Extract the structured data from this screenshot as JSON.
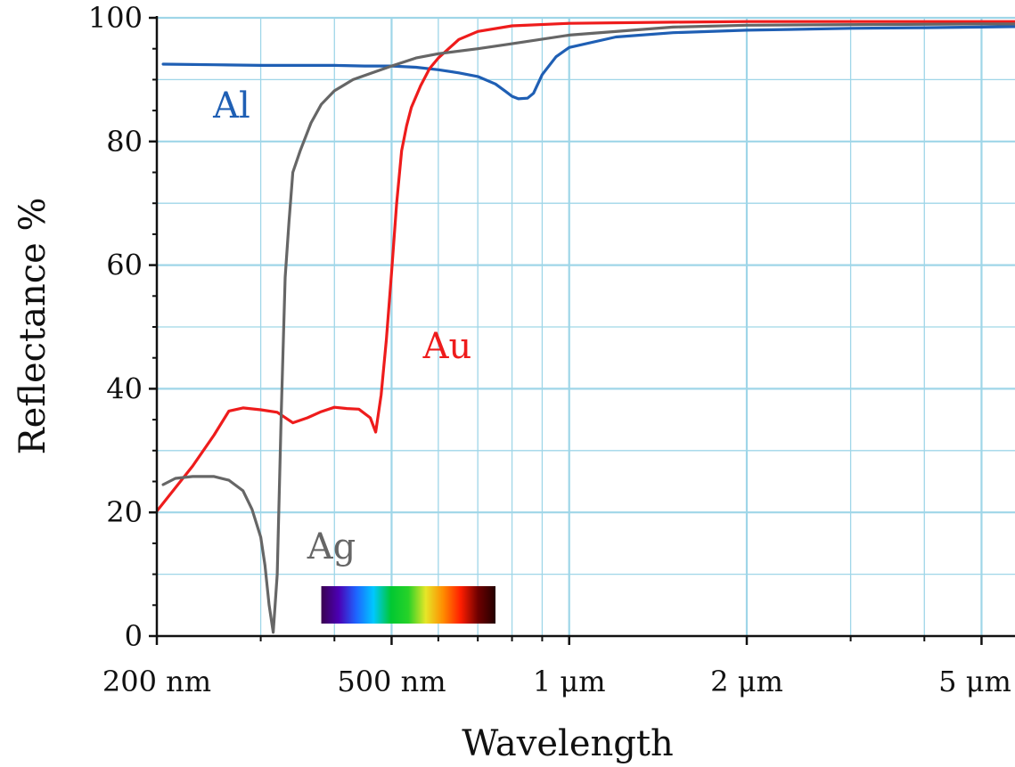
{
  "chart_data": {
    "type": "line",
    "xlabel": "Wavelength",
    "ylabel": "Reflectance %",
    "x_scale": "log",
    "x_unit": "nm",
    "xlim": [
      200,
      6000
    ],
    "ylim": [
      0,
      100
    ],
    "grid": true,
    "colors": {
      "grid": "#9fd6e8",
      "axis": "#111111",
      "Al": "#1f5fb4",
      "Au": "#ee1c1c",
      "Ag": "#666666"
    },
    "x_ticks": [
      {
        "value": 200,
        "label": "200 nm"
      },
      {
        "value": 500,
        "label": "500 nm"
      },
      {
        "value": 1000,
        "label": "1 μm"
      },
      {
        "value": 2000,
        "label": "2 μm"
      },
      {
        "value": 5000,
        "label": "5 μm"
      }
    ],
    "y_ticks": [
      {
        "value": 0,
        "label": "0"
      },
      {
        "value": 20,
        "label": "20"
      },
      {
        "value": 40,
        "label": "40"
      },
      {
        "value": 60,
        "label": "60"
      },
      {
        "value": 80,
        "label": "80"
      },
      {
        "value": 100,
        "label": "100"
      }
    ],
    "visible_spectrum_band": {
      "from": 380,
      "to": 750,
      "stops": [
        "#3a0050",
        "#4b00b4",
        "#1e64ff",
        "#00c8ff",
        "#00c832",
        "#28d228",
        "#e6e628",
        "#ff8c00",
        "#ff1e00",
        "#6e0000",
        "#230000"
      ]
    },
    "series": [
      {
        "name": "Al",
        "label_at": [
          260,
          118
        ],
        "x": [
          205,
          250,
          300,
          350,
          400,
          450,
          500,
          550,
          600,
          650,
          700,
          750,
          780,
          800,
          820,
          850,
          870,
          900,
          950,
          1000,
          1200,
          1500,
          2000,
          3000,
          4000,
          5000,
          6000
        ],
        "y": [
          92.5,
          92.4,
          92.3,
          92.3,
          92.3,
          92.2,
          92.2,
          92.0,
          91.6,
          91.1,
          90.5,
          89.3,
          88.1,
          87.3,
          86.9,
          87.0,
          87.8,
          90.8,
          93.7,
          95.2,
          96.9,
          97.6,
          98.0,
          98.3,
          98.4,
          98.5,
          98.6
        ]
      },
      {
        "name": "Au",
        "label_at": [
          502,
          388
        ],
        "x": [
          200,
          230,
          250,
          265,
          280,
          300,
          320,
          340,
          360,
          380,
          400,
          420,
          440,
          460,
          470,
          480,
          490,
          500,
          510,
          520,
          530,
          540,
          560,
          580,
          600,
          650,
          700,
          800,
          1000,
          1500,
          2000,
          5000,
          6000
        ],
        "y": [
          20.2,
          27.5,
          32.5,
          36.4,
          36.9,
          36.6,
          36.2,
          34.5,
          35.3,
          36.3,
          37.0,
          36.8,
          36.7,
          35.3,
          33.0,
          39.0,
          48.0,
          58.8,
          70.0,
          78.5,
          82.5,
          85.5,
          89.0,
          91.8,
          93.5,
          96.5,
          97.8,
          98.7,
          99.1,
          99.3,
          99.4,
          99.4,
          99.4
        ]
      },
      {
        "name": "Ag",
        "label_at": [
          372,
          613
        ],
        "x": [
          205,
          215,
          230,
          250,
          265,
          280,
          290,
          300,
          305,
          310,
          315,
          320,
          325,
          330,
          335,
          340,
          350,
          365,
          380,
          400,
          430,
          460,
          500,
          550,
          600,
          700,
          800,
          1000,
          1500,
          2000,
          5000,
          6000
        ],
        "y": [
          24.5,
          25.5,
          25.8,
          25.8,
          25.2,
          23.5,
          20.5,
          16.0,
          11.5,
          5.0,
          0.6,
          10.0,
          36.0,
          58.0,
          67.0,
          75.0,
          78.5,
          83.0,
          86.0,
          88.2,
          90.0,
          91.0,
          92.2,
          93.5,
          94.2,
          95.0,
          95.8,
          97.2,
          98.5,
          98.8,
          99.0,
          99.0
        ]
      }
    ]
  }
}
